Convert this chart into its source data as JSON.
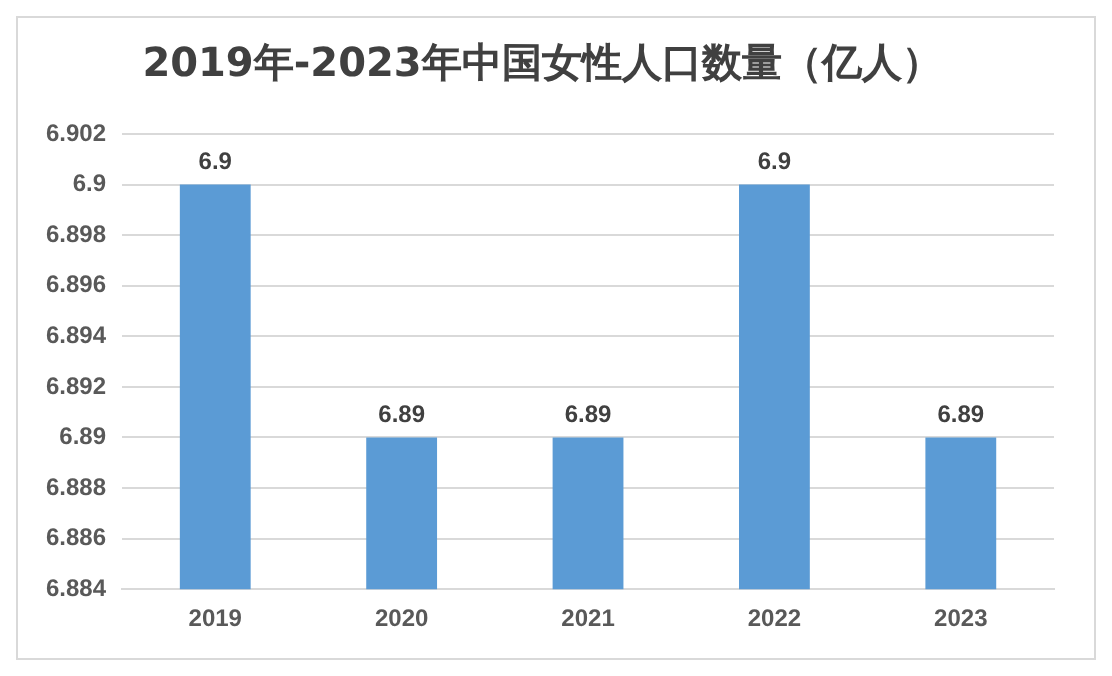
{
  "chart_data": {
    "type": "bar",
    "title": "2019年-2023年中国女性人口数量（亿人）",
    "categories": [
      "2019",
      "2020",
      "2021",
      "2022",
      "2023"
    ],
    "values": [
      6.9,
      6.89,
      6.89,
      6.9,
      6.89
    ],
    "color": "#5b9bd5",
    "ylim": [
      6.884,
      6.902
    ],
    "yticks": [
      6.884,
      6.886,
      6.888,
      6.89,
      6.892,
      6.894,
      6.896,
      6.898,
      6.9,
      6.902
    ],
    "grid": "y",
    "legend": false,
    "data_labels": true
  }
}
